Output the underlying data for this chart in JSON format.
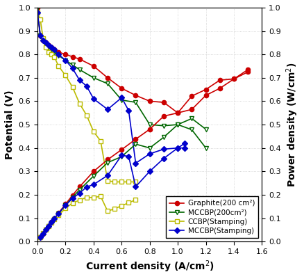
{
  "graphite_200_pol": {
    "x": [
      0.0,
      0.02,
      0.04,
      0.06,
      0.08,
      0.1,
      0.12,
      0.15,
      0.2,
      0.25,
      0.3,
      0.4,
      0.5,
      0.6,
      0.7,
      0.8,
      0.9,
      1.0,
      1.1,
      1.2,
      1.3,
      1.4,
      1.5
    ],
    "y": [
      1.0,
      0.88,
      0.86,
      0.85,
      0.84,
      0.83,
      0.82,
      0.81,
      0.8,
      0.79,
      0.78,
      0.75,
      0.7,
      0.655,
      0.625,
      0.6,
      0.595,
      0.55,
      0.565,
      0.625,
      0.655,
      0.695,
      0.735
    ],
    "color": "#cc0000",
    "marker": "o",
    "label": "Graphite(200 cm²)"
  },
  "mccbp_200_pol": {
    "x": [
      0.0,
      0.02,
      0.04,
      0.06,
      0.08,
      0.1,
      0.12,
      0.15,
      0.2,
      0.25,
      0.3,
      0.4,
      0.5,
      0.6,
      0.7,
      0.8,
      0.9,
      1.0,
      1.1,
      1.2
    ],
    "y": [
      1.0,
      0.88,
      0.86,
      0.84,
      0.83,
      0.82,
      0.81,
      0.795,
      0.775,
      0.755,
      0.735,
      0.7,
      0.675,
      0.605,
      0.595,
      0.5,
      0.495,
      0.5,
      0.478,
      0.4
    ],
    "color": "#006600",
    "marker": "v",
    "label": "MCCBP(200cm²)"
  },
  "ccbp_stamping_pol": {
    "x": [
      0.0,
      0.02,
      0.04,
      0.06,
      0.08,
      0.1,
      0.12,
      0.15,
      0.2,
      0.25,
      0.3,
      0.35,
      0.4,
      0.45,
      0.5,
      0.55,
      0.6,
      0.65,
      0.7
    ],
    "y": [
      0.98,
      0.95,
      0.87,
      0.83,
      0.81,
      0.8,
      0.79,
      0.75,
      0.71,
      0.66,
      0.59,
      0.54,
      0.47,
      0.43,
      0.26,
      0.255,
      0.255,
      0.255,
      0.255
    ],
    "color": "#bbbb00",
    "marker": "s",
    "label": "CCBP(Stamping)"
  },
  "mccbp_stamping_pol": {
    "x": [
      0.0,
      0.02,
      0.04,
      0.06,
      0.08,
      0.1,
      0.12,
      0.15,
      0.2,
      0.25,
      0.3,
      0.35,
      0.4,
      0.5,
      0.6,
      0.65,
      0.7,
      0.8,
      0.9,
      1.0,
      1.05
    ],
    "y": [
      0.98,
      0.88,
      0.86,
      0.85,
      0.84,
      0.83,
      0.82,
      0.8,
      0.775,
      0.74,
      0.69,
      0.665,
      0.61,
      0.565,
      0.615,
      0.56,
      0.335,
      0.375,
      0.395,
      0.4,
      0.4
    ],
    "color": "#0000cc",
    "marker": "D",
    "label": "MCCBP(Stamping)"
  },
  "graphite_200_pow": {
    "x": [
      0.02,
      0.04,
      0.06,
      0.08,
      0.1,
      0.12,
      0.15,
      0.2,
      0.25,
      0.3,
      0.4,
      0.5,
      0.6,
      0.7,
      0.8,
      0.9,
      1.0,
      1.1,
      1.2,
      1.3,
      1.4,
      1.5
    ],
    "y": [
      0.018,
      0.034,
      0.051,
      0.067,
      0.083,
      0.098,
      0.122,
      0.16,
      0.198,
      0.234,
      0.3,
      0.35,
      0.393,
      0.4375,
      0.48,
      0.536,
      0.55,
      0.622,
      0.65,
      0.69,
      0.695,
      0.725
    ]
  },
  "mccbp_200_pow": {
    "x": [
      0.02,
      0.04,
      0.06,
      0.08,
      0.1,
      0.12,
      0.15,
      0.2,
      0.25,
      0.3,
      0.4,
      0.5,
      0.6,
      0.7,
      0.8,
      0.9,
      1.0,
      1.1,
      1.2
    ],
    "y": [
      0.018,
      0.034,
      0.05,
      0.066,
      0.082,
      0.097,
      0.119,
      0.155,
      0.189,
      0.221,
      0.28,
      0.3375,
      0.363,
      0.4165,
      0.4,
      0.446,
      0.5,
      0.526,
      0.48
    ]
  },
  "ccbp_stamping_pow": {
    "x": [
      0.02,
      0.04,
      0.06,
      0.08,
      0.1,
      0.12,
      0.15,
      0.2,
      0.25,
      0.3,
      0.35,
      0.4,
      0.45,
      0.5,
      0.55,
      0.6,
      0.65,
      0.7
    ],
    "y": [
      0.019,
      0.035,
      0.05,
      0.065,
      0.08,
      0.095,
      0.1125,
      0.142,
      0.165,
      0.177,
      0.189,
      0.188,
      0.1935,
      0.13,
      0.14025,
      0.153,
      0.16575,
      0.1785
    ]
  },
  "mccbp_stamping_pow": {
    "x": [
      0.02,
      0.04,
      0.06,
      0.08,
      0.1,
      0.12,
      0.15,
      0.2,
      0.25,
      0.3,
      0.35,
      0.4,
      0.5,
      0.6,
      0.65,
      0.7,
      0.8,
      0.9,
      1.0,
      1.05
    ],
    "y": [
      0.018,
      0.034,
      0.051,
      0.067,
      0.083,
      0.098,
      0.12,
      0.155,
      0.185,
      0.207,
      0.233,
      0.244,
      0.2825,
      0.369,
      0.364,
      0.2345,
      0.3,
      0.3555,
      0.4,
      0.42
    ]
  },
  "series": [
    {
      "pol_key": "graphite_200_pol",
      "pow_key": "graphite_200_pow",
      "color": "#cc0000",
      "marker": "o",
      "label": "Graphite(200 cm²)",
      "open": false
    },
    {
      "pol_key": "mccbp_200_pol",
      "pow_key": "mccbp_200_pow",
      "color": "#006600",
      "marker": "v",
      "label": "MCCBP(200cm²)",
      "open": true
    },
    {
      "pol_key": "ccbp_stamping_pol",
      "pow_key": "ccbp_stamping_pow",
      "color": "#bbbb00",
      "marker": "s",
      "label": "CCBP(Stamping)",
      "open": true
    },
    {
      "pol_key": "mccbp_stamping_pol",
      "pow_key": "mccbp_stamping_pow",
      "color": "#0000cc",
      "marker": "D",
      "label": "MCCBP(Stamping)",
      "open": false
    }
  ],
  "xlabel": "Current density (A/cm$^2$)",
  "ylabel_left": "Potential (V)",
  "ylabel_right": "Power density (W/cm$^2$)",
  "xlim": [
    0,
    1.6
  ],
  "ylim": [
    0.0,
    1.0
  ],
  "xticks": [
    0.0,
    0.2,
    0.4,
    0.6,
    0.8,
    1.0,
    1.2,
    1.4,
    1.6
  ],
  "yticks": [
    0.0,
    0.1,
    0.2,
    0.3,
    0.4,
    0.5,
    0.6,
    0.7,
    0.8,
    0.9,
    1.0
  ],
  "grid_color": "#cccccc",
  "bg_color": "#ffffff"
}
